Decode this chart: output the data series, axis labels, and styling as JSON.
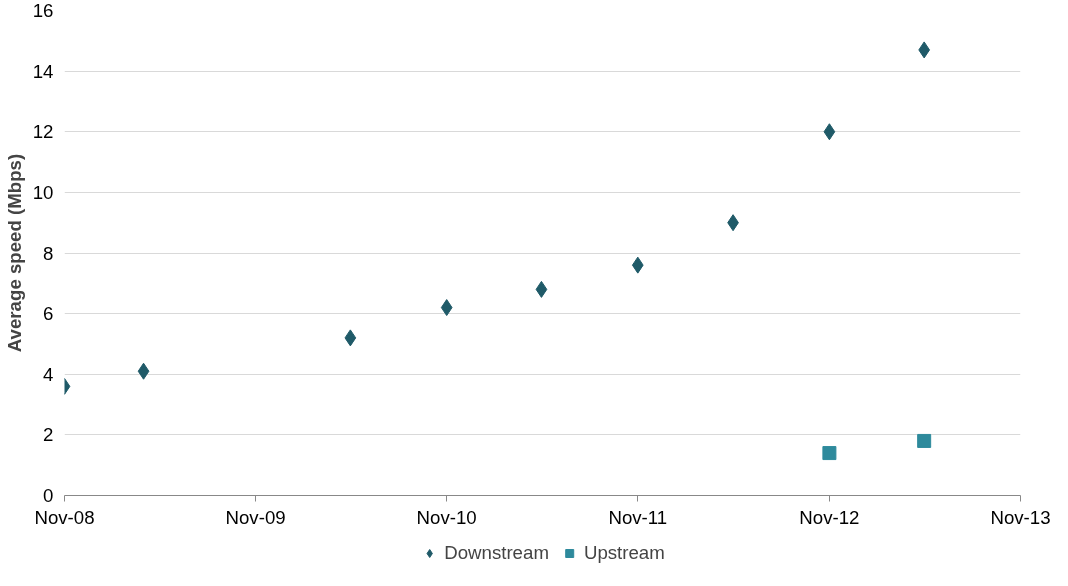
{
  "chart_data": {
    "type": "scatter",
    "ylabel": "Average speed (Mbps)",
    "xlim": [
      "2008-11",
      "2013-11"
    ],
    "xticks": [
      {
        "value": "2008-11",
        "label": "Nov-08"
      },
      {
        "value": "2009-11",
        "label": "Nov-09"
      },
      {
        "value": "2010-11",
        "label": "Nov-10"
      },
      {
        "value": "2011-11",
        "label": "Nov-11"
      },
      {
        "value": "2012-11",
        "label": "Nov-12"
      },
      {
        "value": "2013-11",
        "label": "Nov-13"
      }
    ],
    "ylim": [
      0,
      16
    ],
    "yticks": [
      0,
      2,
      4,
      6,
      8,
      10,
      12,
      14,
      16
    ],
    "grid": "y",
    "legend": "bottom",
    "series": [
      {
        "name": "Downstream",
        "color": "#1f5a68",
        "marker": "diamond",
        "x": [
          "2008-11",
          "2009-04",
          "2010-05",
          "2010-11",
          "2011-05",
          "2011-11",
          "2012-05",
          "2012-11",
          "2013-05"
        ],
        "values": [
          3.6,
          4.1,
          5.2,
          6.2,
          6.8,
          7.6,
          9.0,
          12.0,
          14.7
        ]
      },
      {
        "name": "Upstream",
        "color": "#2e8a9c",
        "marker": "square",
        "x": [
          "2012-11",
          "2013-05"
        ],
        "values": [
          1.4,
          1.8
        ]
      }
    ]
  }
}
